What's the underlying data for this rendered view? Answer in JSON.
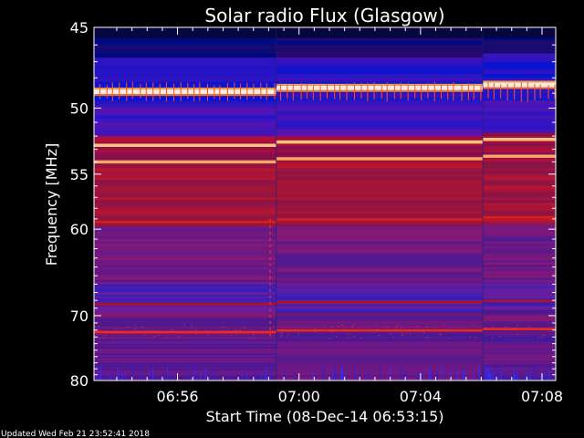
{
  "chart_data": {
    "type": "heatmap",
    "title": "Solar radio Flux (Glasgow)",
    "xlabel": "Start Time (08-Dec-14 06:53:15)",
    "ylabel": "Frequency [MHz]",
    "x_start": "06:53:15",
    "x_range_minutes": [
      0,
      15.2
    ],
    "x_ticks": [
      {
        "label": "06:56",
        "minutes": 2.75
      },
      {
        "label": "07:00",
        "minutes": 6.75
      },
      {
        "label": "07:04",
        "minutes": 10.75
      },
      {
        "label": "07:08",
        "minutes": 14.75
      }
    ],
    "y_range": [
      45,
      80
    ],
    "y_scale": "reciprocal",
    "y_ticks": [
      45,
      50,
      55,
      60,
      70,
      80
    ],
    "segments_minutes": [
      0,
      6.0,
      12.8,
      15.2
    ],
    "emission_bands": [
      {
        "freq": 48.9,
        "intensity": "very high",
        "color": "#fff8e0"
      },
      {
        "freq": 52.7,
        "intensity": "high",
        "color": "#ffd080"
      },
      {
        "freq": 54.0,
        "intensity": "high",
        "color": "#ffb060"
      },
      {
        "freq": 59.3,
        "intensity": "medium",
        "color": "#e02010"
      },
      {
        "freq": 68.5,
        "intensity": "low",
        "color": "#c01010"
      },
      {
        "freq": 72.3,
        "intensity": "medium",
        "color": "#ff2a10"
      }
    ]
  },
  "footer": {
    "updated": "Updated Wed Feb 21 23:52:41 2018"
  }
}
